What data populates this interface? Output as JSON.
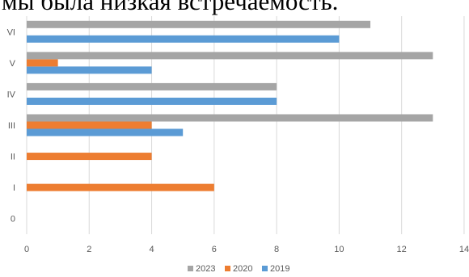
{
  "page": {
    "top_text": "мы была низкая встречаемость."
  },
  "chart_data": {
    "type": "bar",
    "orientation": "horizontal",
    "categories": [
      "0",
      "I",
      "II",
      "III",
      "IV",
      "V",
      "VI"
    ],
    "series": [
      {
        "name": "2019",
        "color": "#5b9bd5",
        "values": [
          0,
          0,
          0,
          5,
          8,
          4,
          10
        ]
      },
      {
        "name": "2020",
        "color": "#ed7d31",
        "values": [
          0,
          6,
          4,
          4,
          0,
          1,
          0
        ]
      },
      {
        "name": "2023",
        "color": "#a5a5a5",
        "values": [
          0,
          0,
          0,
          13,
          8,
          13,
          11
        ]
      }
    ],
    "legend_order": [
      "2023",
      "2020",
      "2019"
    ],
    "xlim": [
      0,
      14
    ],
    "xticks": [
      0,
      2,
      4,
      6,
      8,
      10,
      12,
      14
    ],
    "grid": "vertical",
    "legend_position": "bottom",
    "title": "",
    "xlabel": "",
    "ylabel": ""
  }
}
